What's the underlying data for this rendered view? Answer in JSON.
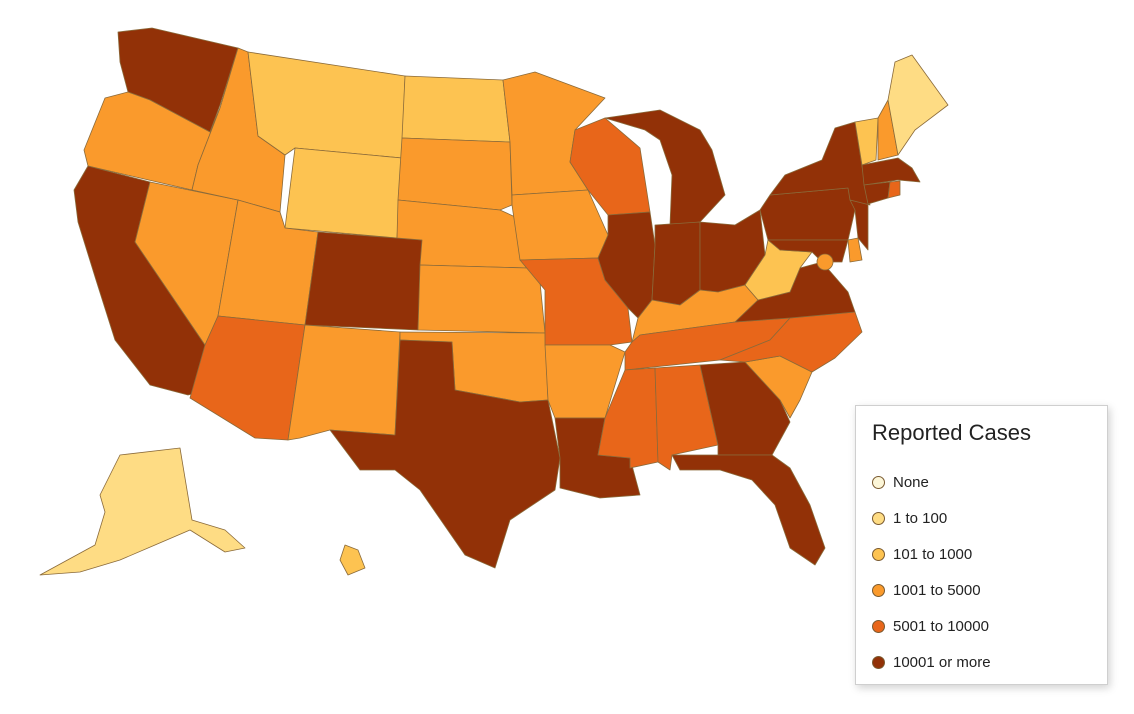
{
  "legend": {
    "title": "Reported Cases",
    "items": [
      {
        "label": "None",
        "color": "#fcf6d8"
      },
      {
        "label": "1 to 100",
        "color": "#fedc84"
      },
      {
        "label": "101 to 1000",
        "color": "#fdc351"
      },
      {
        "label": "1001 to 5000",
        "color": "#fa9a2c"
      },
      {
        "label": "5001 to 10000",
        "color": "#e8661a"
      },
      {
        "label": "10001 or more",
        "color": "#923107"
      }
    ]
  },
  "states": [
    {
      "name": "washington",
      "category": "10001 or more"
    },
    {
      "name": "oregon",
      "category": "1001 to 5000"
    },
    {
      "name": "california",
      "category": "10001 or more"
    },
    {
      "name": "nevada",
      "category": "1001 to 5000"
    },
    {
      "name": "idaho",
      "category": "1001 to 5000"
    },
    {
      "name": "montana",
      "category": "101 to 1000"
    },
    {
      "name": "wyoming",
      "category": "101 to 1000"
    },
    {
      "name": "utah",
      "category": "1001 to 5000"
    },
    {
      "name": "arizona",
      "category": "5001 to 10000"
    },
    {
      "name": "colorado",
      "category": "10001 or more"
    },
    {
      "name": "new-mexico",
      "category": "1001 to 5000"
    },
    {
      "name": "north-dakota",
      "category": "101 to 1000"
    },
    {
      "name": "south-dakota",
      "category": "1001 to 5000"
    },
    {
      "name": "nebraska",
      "category": "1001 to 5000"
    },
    {
      "name": "kansas",
      "category": "1001 to 5000"
    },
    {
      "name": "oklahoma",
      "category": "1001 to 5000"
    },
    {
      "name": "texas",
      "category": "10001 or more"
    },
    {
      "name": "minnesota",
      "category": "1001 to 5000"
    },
    {
      "name": "iowa",
      "category": "1001 to 5000"
    },
    {
      "name": "missouri",
      "category": "5001 to 10000"
    },
    {
      "name": "arkansas",
      "category": "1001 to 5000"
    },
    {
      "name": "louisiana",
      "category": "10001 or more"
    },
    {
      "name": "wisconsin",
      "category": "5001 to 10000"
    },
    {
      "name": "illinois",
      "category": "10001 or more"
    },
    {
      "name": "michigan",
      "category": "10001 or more"
    },
    {
      "name": "indiana",
      "category": "10001 or more"
    },
    {
      "name": "ohio",
      "category": "10001 or more"
    },
    {
      "name": "kentucky",
      "category": "1001 to 5000"
    },
    {
      "name": "tennessee",
      "category": "5001 to 10000"
    },
    {
      "name": "mississippi",
      "category": "5001 to 10000"
    },
    {
      "name": "alabama",
      "category": "5001 to 10000"
    },
    {
      "name": "georgia",
      "category": "10001 or more"
    },
    {
      "name": "florida",
      "category": "10001 or more"
    },
    {
      "name": "south-carolina",
      "category": "1001 to 5000"
    },
    {
      "name": "north-carolina",
      "category": "5001 to 10000"
    },
    {
      "name": "virginia",
      "category": "10001 or more"
    },
    {
      "name": "west-virginia",
      "category": "101 to 1000"
    },
    {
      "name": "maryland",
      "category": "10001 or more"
    },
    {
      "name": "delaware",
      "category": "1001 to 5000"
    },
    {
      "name": "district-of-columbia",
      "category": "1001 to 5000"
    },
    {
      "name": "pennsylvania",
      "category": "10001 or more"
    },
    {
      "name": "new-jersey",
      "category": "10001 or more"
    },
    {
      "name": "new-york",
      "category": "10001 or more"
    },
    {
      "name": "connecticut",
      "category": "10001 or more"
    },
    {
      "name": "rhode-island",
      "category": "5001 to 10000"
    },
    {
      "name": "massachusetts",
      "category": "10001 or more"
    },
    {
      "name": "vermont",
      "category": "101 to 1000"
    },
    {
      "name": "new-hampshire",
      "category": "1001 to 5000"
    },
    {
      "name": "maine",
      "category": "1 to 100"
    },
    {
      "name": "alaska",
      "category": "1 to 100"
    },
    {
      "name": "hawaii",
      "category": "101 to 1000"
    }
  ]
}
